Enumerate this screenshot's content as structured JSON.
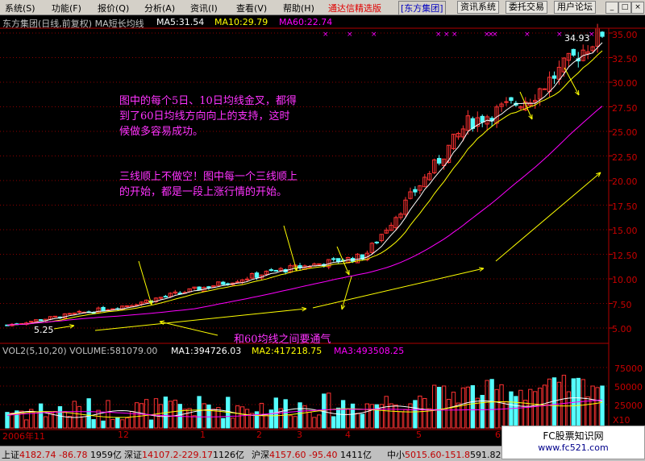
{
  "menu": [
    "系统(S)",
    "功能(F)",
    "报价(Q)",
    "分析(A)",
    "资讯(I)",
    "查看(V)",
    "帮助(H)"
  ],
  "app_name": "通达信精选版",
  "stock_tag": "[东方集团]",
  "toolbar": [
    "资讯系统",
    "委托交易",
    "用户论坛"
  ],
  "window_buttons": [
    "_",
    "□",
    "×"
  ],
  "info": {
    "title": "东方集团(日线,前复权) MA短长均线",
    "ma5": "MA5:31.54",
    "ma10": "MA10:29.79",
    "ma60": "MA60:22.74"
  },
  "price_axis": [
    "35.00",
    "32.50",
    "30.00",
    "27.50",
    "25.00",
    "22.50",
    "20.00",
    "17.50",
    "15.00",
    "12.50",
    "10.00",
    "7.50",
    "5.00"
  ],
  "annotations": {
    "a1": [
      "图中的每个5日、10日均线金叉，都得",
      "到了60日均线方向向上的支持，这时",
      "候做多容易成功。"
    ],
    "a2": [
      "三线顺上不做空！图中每一个三线顺上",
      "的开始，都是一段上涨行情的开始。"
    ],
    "a3": "和60均线之间要通气",
    "high_label": "34.93",
    "low_label": "5.25"
  },
  "vol_info": {
    "title": "VOL2(5,10,20) VOLUME:581079.00",
    "ma1": "MA1:394726.03",
    "ma2": "MA2:417218.75",
    "ma3": "MA3:493508.25"
  },
  "vol_axis": [
    "75000",
    "50000",
    "25000"
  ],
  "vol_unit": "X10",
  "time_axis": [
    "2006年11",
    "12",
    "1",
    "2",
    "3",
    "4",
    "5",
    "6"
  ],
  "bottom": {
    "sh": {
      "name": "上证",
      "val": "4182.74",
      "chg": "-86.78",
      "amt": "1959亿"
    },
    "sz": {
      "name": "深证",
      "val": "14107.2",
      "chg": "-229.17",
      "amt": "1126亿"
    },
    "hs": {
      "name": "沪深",
      "val": "4157.60",
      "chg": "-95.40",
      "amt": "1411亿"
    },
    "zx": {
      "name": "中小",
      "val": "5015.60",
      "chg": "-151.8",
      "amt": "591.82亿"
    }
  },
  "watermark": {
    "line1": "FC股票知识网",
    "line2": "www.fc521.com"
  },
  "colors": {
    "up": "#ff3232",
    "down": "#54ffff",
    "ma5": "#ffffff",
    "ma10": "#ffff00",
    "ma60": "#ff00ff",
    "grid": "#8b0000",
    "axis_text": "#c80000",
    "anno": "#ff33ff"
  }
}
